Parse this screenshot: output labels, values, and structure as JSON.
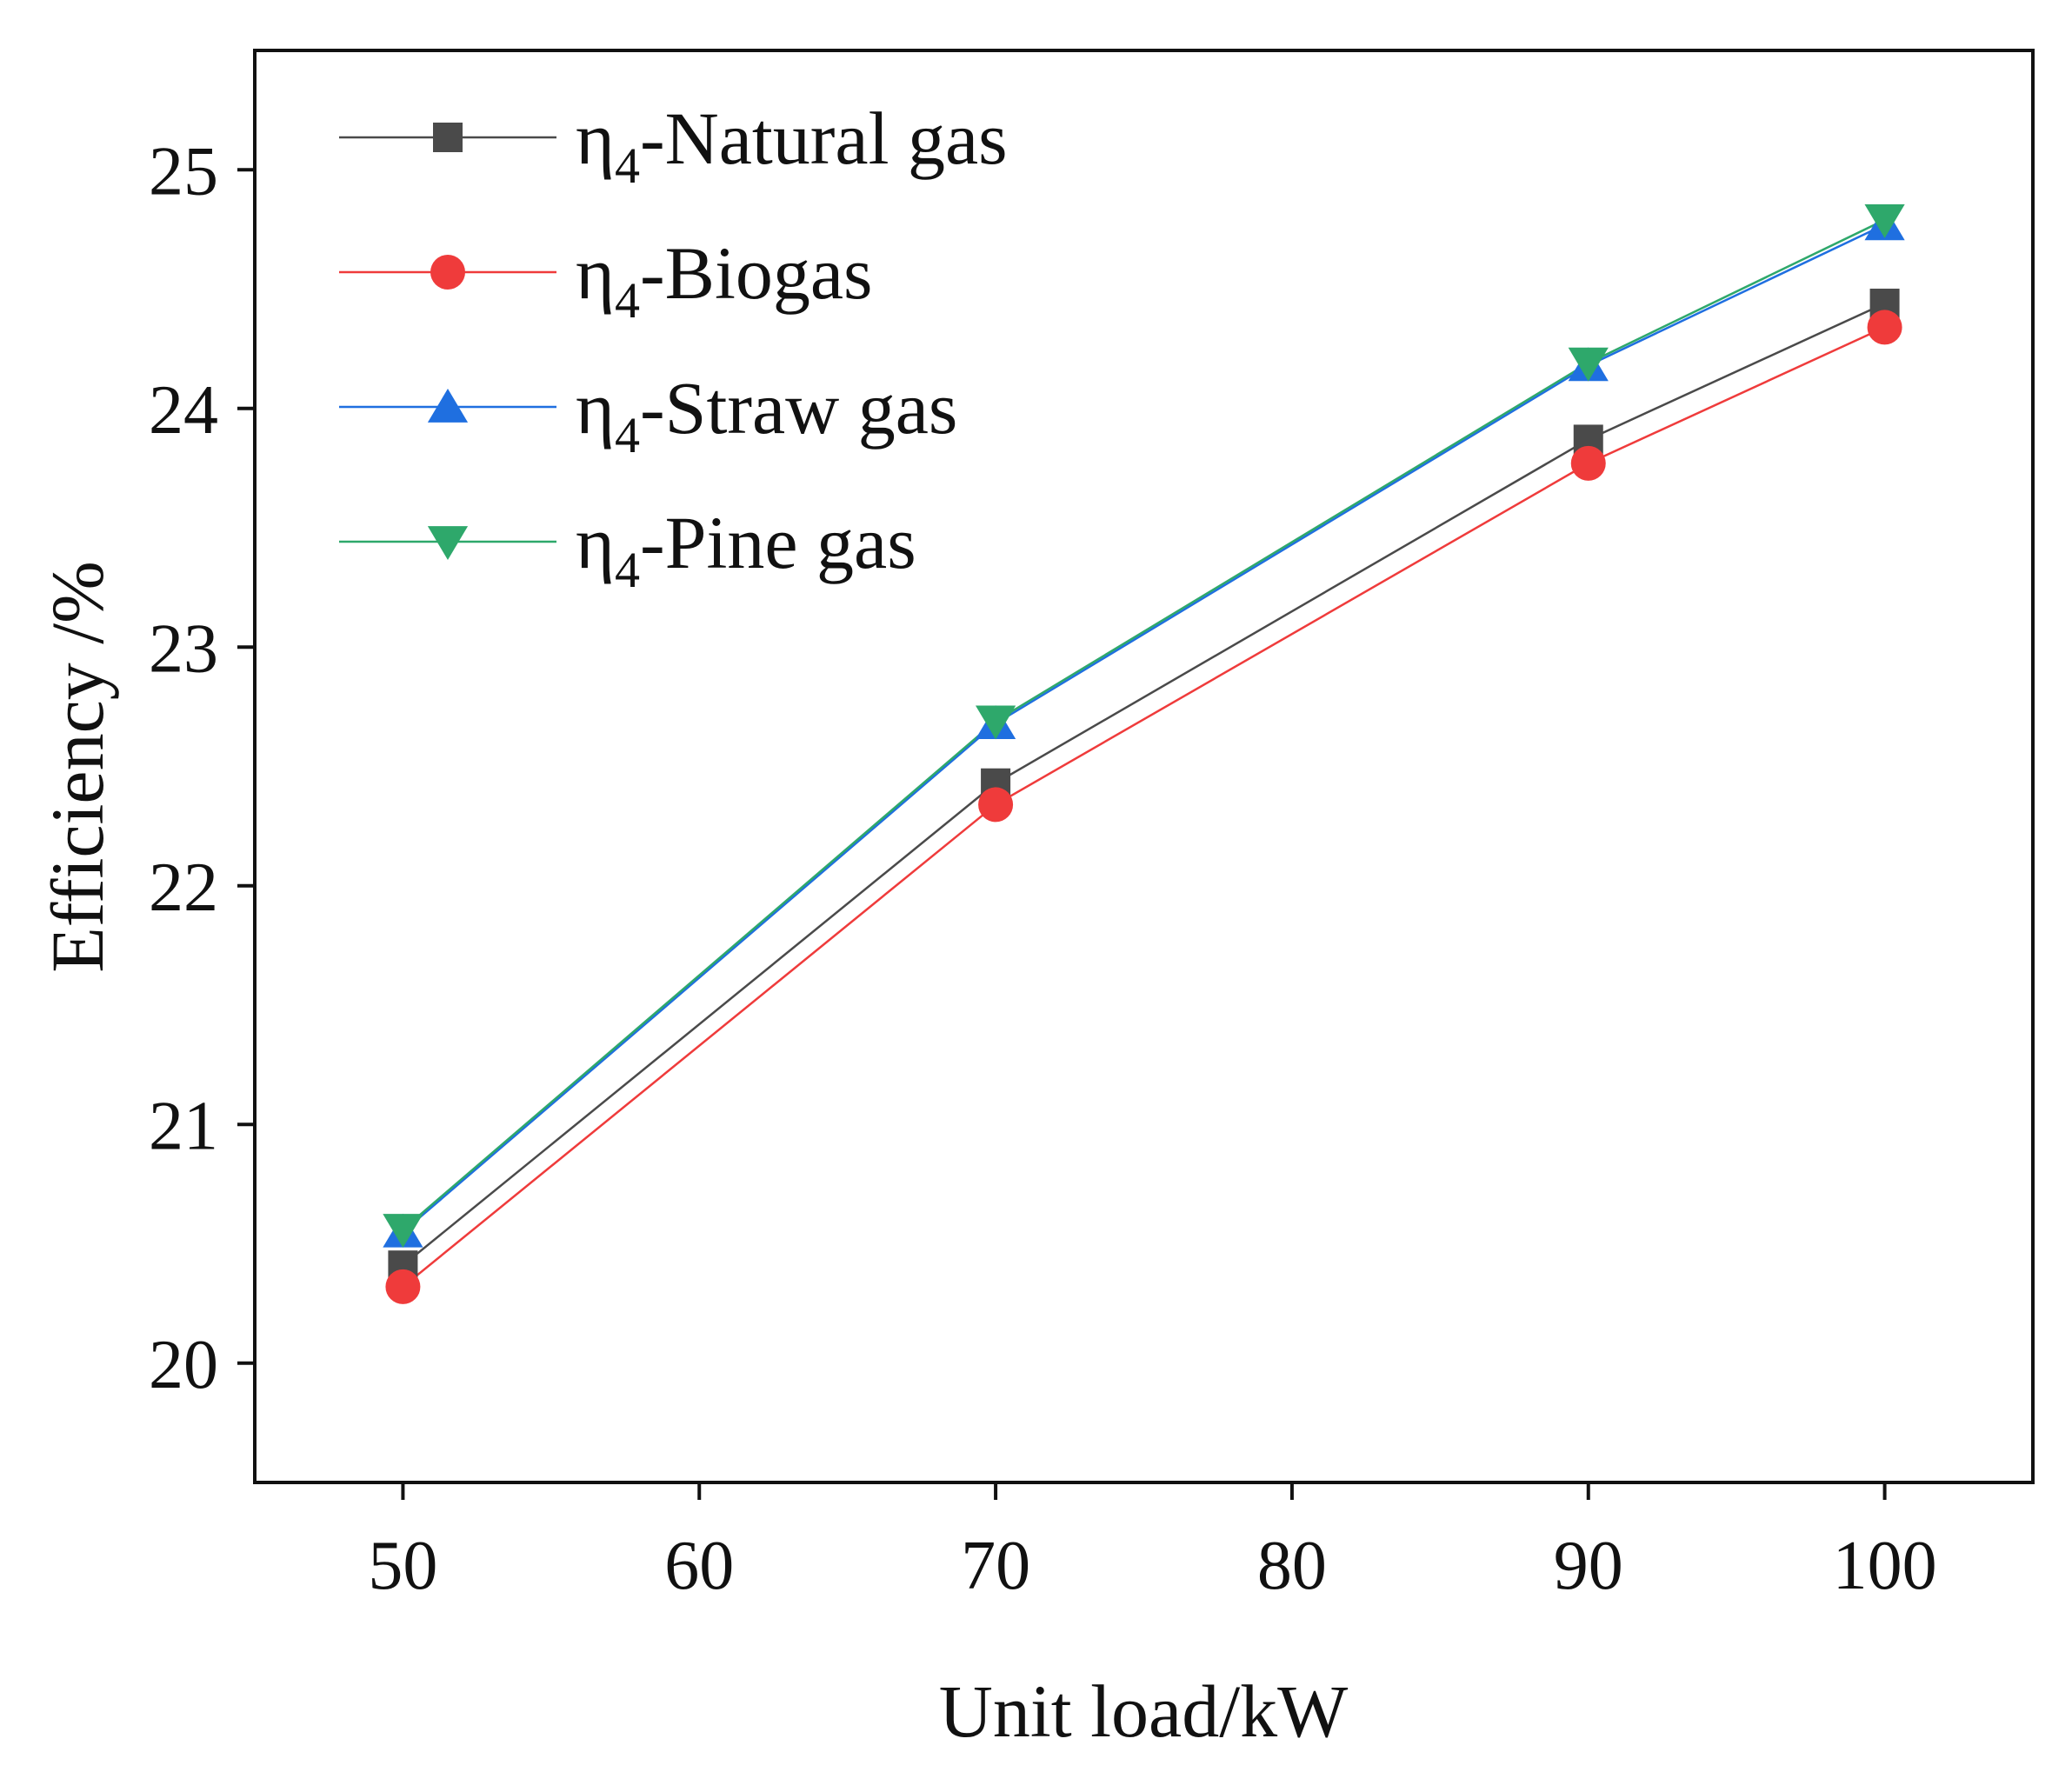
{
  "chart_data": {
    "type": "line",
    "title": "",
    "xlabel": "Unit load/kW",
    "ylabel": "Efficiency /%",
    "x": [
      50,
      70,
      90,
      100
    ],
    "xlim": [
      45,
      105
    ],
    "ylim": [
      19.5,
      25.5
    ],
    "xticks": [
      50,
      60,
      70,
      80,
      90,
      100
    ],
    "yticks": [
      20,
      21,
      22,
      23,
      24,
      25
    ],
    "grid": false,
    "legend_position": "top-left",
    "series": [
      {
        "name": "Natural gas",
        "prefix": "η",
        "subscript": "4",
        "suffix": "-Natural gas",
        "marker": "square",
        "color": "#4a4a4a",
        "values": [
          20.41,
          22.43,
          23.87,
          24.44
        ]
      },
      {
        "name": "Biogas",
        "prefix": "η",
        "subscript": "4",
        "suffix": "-Biogas",
        "marker": "circle",
        "color": "#ef3b3b",
        "values": [
          20.32,
          22.34,
          23.77,
          24.34
        ]
      },
      {
        "name": "Straw gas",
        "prefix": "η",
        "subscript": "4",
        "suffix": "-Straw gas",
        "marker": "triangle-up",
        "color": "#1f6fe0",
        "values": [
          20.55,
          22.68,
          24.18,
          24.77
        ]
      },
      {
        "name": "Pine gas",
        "prefix": "η",
        "subscript": "4",
        "suffix": "-Pine gas",
        "marker": "triangle-down",
        "color": "#2ea86b",
        "values": [
          20.56,
          22.69,
          24.19,
          24.79
        ]
      }
    ]
  }
}
